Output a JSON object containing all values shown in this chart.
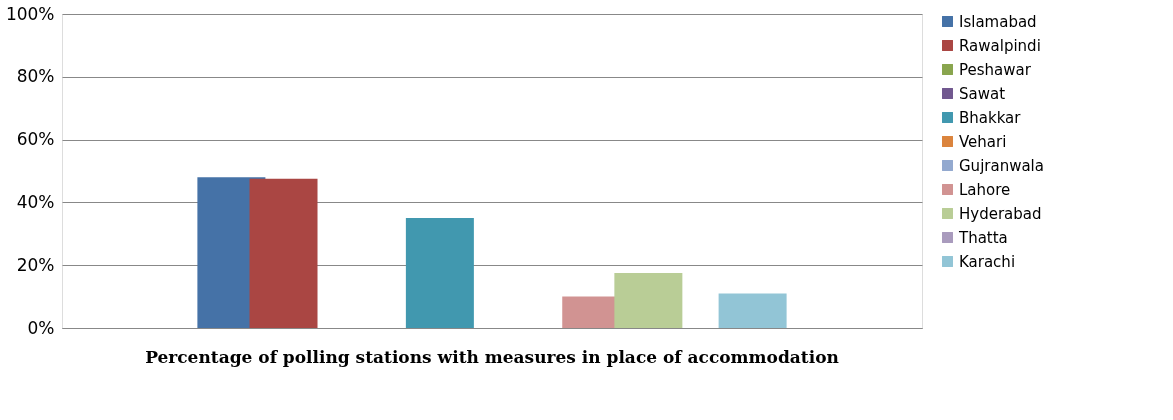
{
  "chart_data": {
    "type": "bar",
    "title": "Percentage of polling stations with measures in place of accommodation",
    "categories": [
      null
    ],
    "series": [
      {
        "name": "Islamabad",
        "color": "#4572a7",
        "values": [
          48
        ]
      },
      {
        "name": "Rawalpindi",
        "color": "#aa4643",
        "values": [
          47.5
        ]
      },
      {
        "name": "Peshawar",
        "color": "#89a54e",
        "values": [
          0
        ]
      },
      {
        "name": "Sawat",
        "color": "#71588f",
        "values": [
          0
        ]
      },
      {
        "name": "Bhakkar",
        "color": "#4198af",
        "values": [
          35
        ]
      },
      {
        "name": "Vehari",
        "color": "#db843d",
        "values": [
          0
        ]
      },
      {
        "name": "Gujranwala",
        "color": "#93a9cf",
        "values": [
          0
        ]
      },
      {
        "name": "Lahore",
        "color": "#d19392",
        "values": [
          10
        ]
      },
      {
        "name": "Hyderabad",
        "color": "#b9cd96",
        "values": [
          17.5
        ]
      },
      {
        "name": "Thatta",
        "color": "#a99bbd",
        "values": [
          0
        ]
      },
      {
        "name": "Karachi",
        "color": "#92c5d6",
        "values": [
          11
        ]
      }
    ],
    "ylim": [
      0,
      100
    ],
    "yticks": [
      {
        "value": 0,
        "label": "0%"
      },
      {
        "value": 20,
        "label": "20%"
      },
      {
        "value": 40,
        "label": "40%"
      },
      {
        "value": 60,
        "label": "60%"
      },
      {
        "value": 80,
        "label": "80%"
      },
      {
        "value": 100,
        "label": "100%"
      }
    ],
    "grid": "y",
    "legend": "right",
    "tick_labels": "y"
  }
}
